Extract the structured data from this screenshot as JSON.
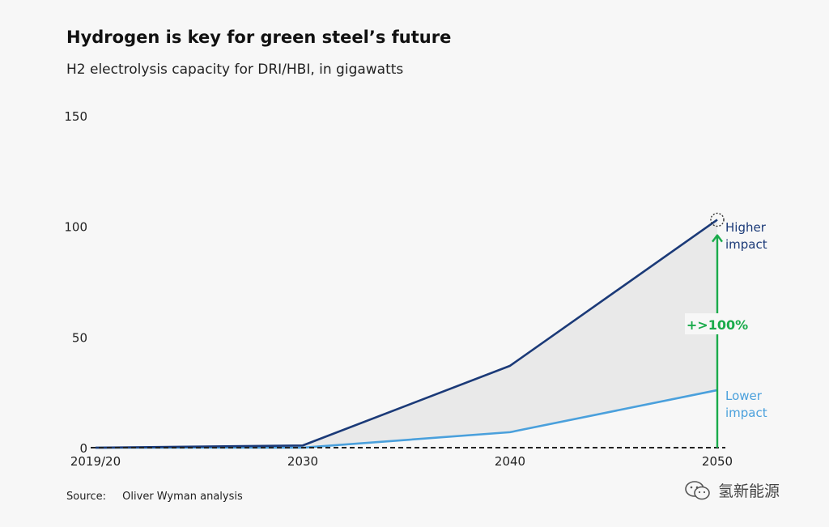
{
  "title": "Hydrogen is key for green steel’s future",
  "subtitle": "H2 electrolysis capacity for DRI/HBI, in gigawatts",
  "source": {
    "label": "Source:",
    "text": "Oliver Wyman analysis"
  },
  "watermark": {
    "text": "氢新能源",
    "icon": "wechat-icon"
  },
  "colors": {
    "higher": "#1b3a78",
    "lower": "#4aa0dc",
    "arrow": "#1aab4b",
    "band": "#e9e9e9",
    "axis": "#222222"
  },
  "chart_data": {
    "type": "line",
    "x": [
      "2019/20",
      "2030",
      "2040",
      "2050"
    ],
    "ylim": [
      0,
      150
    ],
    "yticks": [
      0,
      50,
      100,
      150
    ],
    "xlabel": "",
    "ylabel": "",
    "grid": false,
    "series": [
      {
        "key": "higher",
        "name_lines": [
          "Higher",
          "impact"
        ],
        "values": [
          0,
          1,
          37,
          103
        ]
      },
      {
        "key": "lower",
        "name_lines": [
          "Lower",
          "impact"
        ],
        "values": [
          0,
          0,
          7,
          26
        ]
      }
    ],
    "annotation": {
      "text": "+>100%",
      "x": "2050",
      "from": 0,
      "to": 96
    }
  }
}
